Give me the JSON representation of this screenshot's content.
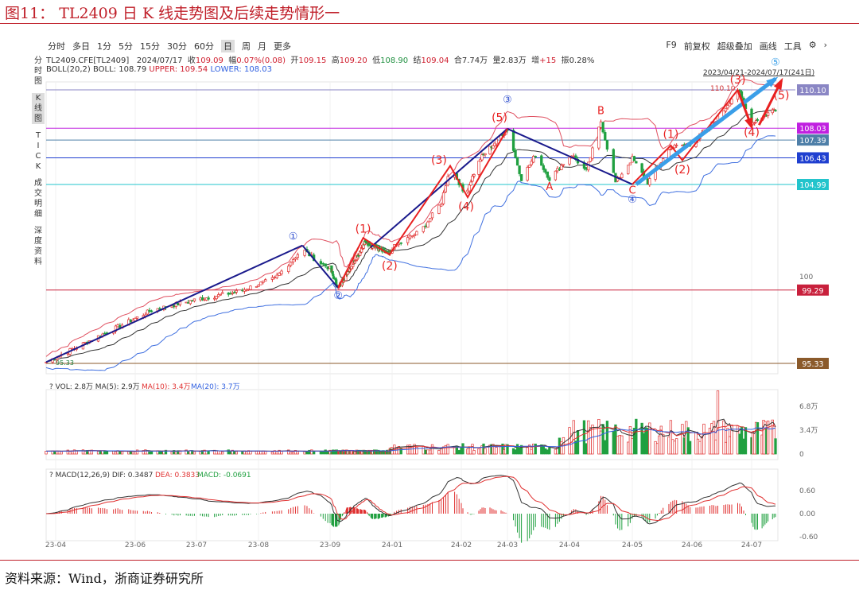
{
  "figure": {
    "title": "图11：  TL2409 日 K 线走势图及后续走势情形一",
    "source": "资料来源：Wind，浙商证券研究所"
  },
  "toolbar": {
    "tabs": [
      "分时",
      "多日",
      "1分",
      "5分",
      "15分",
      "30分",
      "60分",
      "日",
      "周",
      "月",
      "更多"
    ],
    "selected": "日",
    "right": [
      "F9",
      "前复权",
      "超级叠加",
      "画线",
      "工具",
      "⚙",
      "›"
    ]
  },
  "sidebar": {
    "items": [
      "分时图",
      "K线图",
      "TICK",
      "成交明细",
      "深度资料"
    ],
    "selected": "K线图"
  },
  "info": {
    "symbol": "TL2409.CFE[TL2409]",
    "date": "2024/07/17",
    "close_label": "收",
    "close": "109.09",
    "change_label": "幅",
    "change": "0.07%(0.08)",
    "open_label": "开",
    "open": "109.15",
    "high_label": "高",
    "high": "109.20",
    "low_label": "低",
    "low": "108.90",
    "settle_label": "结",
    "settle": "109.04",
    "amount_label": "合",
    "amount": "7.74万",
    "volume_label": "量",
    "volume": "2.83万",
    "oi_label": "增",
    "oi": "+15",
    "amp_label": "振",
    "amp": "0.28%"
  },
  "boll": {
    "label": "BOLL(20,2)",
    "mid": "BOLL: 108.79",
    "upper": "UPPER: 109.54",
    "lower": "LOWER: 108.03"
  },
  "range_label": "2023/04/21-2024/07/17(241日)",
  "vol_legend": {
    "q": "?",
    "vol": "VOL: 2.8万",
    "ma5": "MA(5): 2.9万",
    "ma10": "MA(10): 3.4万",
    "ma20": "MA(20): 3.7万"
  },
  "macd_legend": {
    "q": "?",
    "label": "MACD(12,26,9)",
    "dif": "DIF: 0.3487",
    "dea": "DEA: 0.3833",
    "macd": "MACD: -0.0691"
  },
  "colors": {
    "up": "#e03030",
    "down": "#20a040",
    "navy": "#1a1a8c",
    "wave": "#e82020",
    "arrow_blue": "#3a9ee8"
  },
  "chart_data": {
    "type": "candlestick",
    "x_ticks": [
      "23-04",
      "23-06",
      "23-07",
      "23-08",
      "23-09",
      "24-01",
      "24-02",
      "24-03",
      "24-04",
      "24-05",
      "24-06",
      "24-07"
    ],
    "price_ticks": [
      "100"
    ],
    "vol_ticks": [
      "6.8万",
      "3.4万",
      "0"
    ],
    "macd_ticks": [
      "0.60",
      "0.00",
      "-0.60"
    ],
    "price_range": [
      95.0,
      110.9
    ],
    "close_path": [
      [
        "2023-04-21",
        95.4
      ],
      [
        "2023-05-17",
        96.9
      ],
      [
        "2023-06-09",
        98.2
      ],
      [
        "2023-07-02",
        98.8
      ],
      [
        "2023-07-22",
        99.2
      ],
      [
        "2023-08-08",
        99.9
      ],
      [
        "2023-08-20",
        101.5
      ],
      [
        "2023-08-27",
        100.8
      ],
      [
        "2023-09-17",
        99.4
      ],
      [
        "2023-11-10",
        101.9
      ],
      [
        "2023-12-27",
        101.2
      ],
      [
        "2024-01-14",
        102.5
      ],
      [
        "2024-01-23",
        104.0
      ],
      [
        "2024-01-27",
        106.0
      ],
      [
        "2024-02-03",
        104.4
      ],
      [
        "2024-02-13",
        106.4
      ],
      [
        "2024-03-01",
        108.0
      ],
      [
        "2024-03-08",
        105.3
      ],
      [
        "2024-03-15",
        106.6
      ],
      [
        "2024-03-22",
        105.3
      ],
      [
        "2024-04-02",
        106.6
      ],
      [
        "2024-04-09",
        105.7
      ],
      [
        "2024-04-16",
        108.4
      ],
      [
        "2024-04-23",
        105.1
      ],
      [
        "2024-05-01",
        106.4
      ],
      [
        "2024-05-09",
        105.1
      ],
      [
        "2024-05-21",
        107.0
      ],
      [
        "2024-06-01",
        107.2
      ],
      [
        "2024-06-15",
        108.7
      ],
      [
        "2024-06-24",
        110.1
      ],
      [
        "2024-07-01",
        108.3
      ],
      [
        "2024-07-17",
        109.09
      ]
    ],
    "levels": [
      {
        "value": "110.10",
        "color": "#8a86c4"
      },
      {
        "value": "108.03",
        "color": "#c020e0"
      },
      {
        "value": "107.39",
        "color": "#4e7fa8"
      },
      {
        "value": "106.43",
        "color": "#1f3fd0"
      },
      {
        "value": "104.99",
        "color": "#22c4cc"
      },
      {
        "value": "99.29",
        "color": "#c8203c"
      },
      {
        "value": "95.33",
        "color": "#8b5a2b"
      }
    ],
    "low_mark": "95.33",
    "high_mark": "110.10",
    "navy_lines": [
      [
        [
          "2023-04-21",
          95.4
        ],
        [
          "2023-08-20",
          101.7
        ]
      ],
      [
        [
          "2023-08-20",
          101.7
        ],
        [
          "2023-09-17",
          99.4
        ]
      ],
      [
        [
          "2023-11-20",
          101.6
        ],
        [
          "2024-03-01",
          108.0
        ]
      ],
      [
        [
          "2024-03-01",
          108.0
        ],
        [
          "2024-05-01",
          105.0
        ]
      ]
    ],
    "red_lines": [
      [
        [
          "2023-09-17",
          99.4
        ],
        [
          "2023-11-05",
          102.1
        ],
        [
          "2023-12-27",
          101.2
        ],
        [
          "2024-01-27",
          106.0
        ],
        [
          "2024-02-05",
          104.3
        ],
        [
          "2024-03-01",
          108.0
        ]
      ],
      [
        [
          "2024-05-01",
          105.0
        ],
        [
          "2024-05-21",
          107.1
        ],
        [
          "2024-05-27",
          106.3
        ],
        [
          "2024-06-24",
          110.1
        ]
      ]
    ],
    "arrows": [
      {
        "color": "#3a9ee8",
        "from": [
          "2024-05-03",
          105.0
        ],
        "to": [
          "2024-07-17",
          110.7
        ]
      },
      {
        "color": "#e82020",
        "from": [
          "2024-06-24",
          110.1
        ],
        "to": [
          "2024-07-01",
          108.1
        ]
      },
      {
        "color": "#e82020",
        "from": [
          "2024-07-06",
          108.2
        ],
        "to": [
          "2024-07-20",
          110.6
        ]
      }
    ],
    "labels": [
      {
        "t": "①",
        "d": "2023-08-16",
        "p": 102.0,
        "c": "#3050d0"
      },
      {
        "t": "②",
        "d": "2023-09-17",
        "p": 98.8,
        "c": "#3050d0"
      },
      {
        "t": "③",
        "d": "2024-03-01",
        "p": 109.4,
        "c": "#3050d0"
      },
      {
        "t": "④",
        "d": "2024-05-01",
        "p": 104.0,
        "c": "#3050d0"
      },
      {
        "t": "⑤",
        "d": "2024-07-17",
        "p": 111.4,
        "c": "#3aa0e8"
      },
      {
        "t": "(1)",
        "d": "2023-11-05",
        "p": 102.4,
        "c": "#e82020"
      },
      {
        "t": "(2)",
        "d": "2023-12-27",
        "p": 100.4,
        "c": "#e82020"
      },
      {
        "t": "(3)",
        "d": "2024-01-22",
        "p": 106.1,
        "c": "#e82020"
      },
      {
        "t": "(4)",
        "d": "2024-02-04",
        "p": 103.6,
        "c": "#e82020"
      },
      {
        "t": "(5)",
        "d": "2024-02-25",
        "p": 108.4,
        "c": "#e82020"
      },
      {
        "t": "A",
        "d": "2024-03-22",
        "p": 104.7,
        "c": "#e82020"
      },
      {
        "t": "B",
        "d": "2024-04-16",
        "p": 108.8,
        "c": "#e82020"
      },
      {
        "t": "C",
        "d": "2024-05-01",
        "p": 104.5,
        "c": "#e82020"
      },
      {
        "t": "(1)",
        "d": "2024-05-21",
        "p": 107.5,
        "c": "#e82020"
      },
      {
        "t": "(2)",
        "d": "2024-05-27",
        "p": 105.6,
        "c": "#e82020"
      },
      {
        "t": "(3)",
        "d": "2024-06-24",
        "p": 110.45,
        "c": "#e82020"
      },
      {
        "t": "(4)",
        "d": "2024-07-01",
        "p": 107.6,
        "c": "#e82020"
      },
      {
        "t": "(5)",
        "d": "2024-07-20",
        "p": 109.6,
        "c": "#e82020"
      }
    ]
  }
}
